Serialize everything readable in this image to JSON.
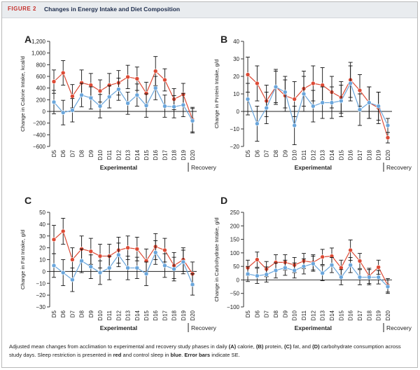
{
  "figure": {
    "label": "FIGURE 2",
    "title": "Changes in Energy Intake and Diet Composition"
  },
  "caption": {
    "parts": [
      {
        "t": "Adjusted mean changes from acclimation to experimental and recovery study phases in daily ",
        "b": false
      },
      {
        "t": "(A)",
        "b": true
      },
      {
        "t": " calorie, ",
        "b": false
      },
      {
        "t": "(B)",
        "b": true
      },
      {
        "t": " protein, ",
        "b": false
      },
      {
        "t": "(C)",
        "b": true
      },
      {
        "t": " fat, and ",
        "b": false
      },
      {
        "t": "(D)",
        "b": true
      },
      {
        "t": " carbohydrate consumption across study days. Sleep restriction is presented in ",
        "b": false
      },
      {
        "t": "red",
        "b": true
      },
      {
        "t": " and control sleep in ",
        "b": false
      },
      {
        "t": "blue",
        "b": true
      },
      {
        "t": ". ",
        "b": false
      },
      {
        "t": "Error bars",
        "b": true
      },
      {
        "t": " indicate SE.",
        "b": false
      }
    ]
  },
  "colors": {
    "sleep_restriction": "#dd4a35",
    "control": "#6aa6dc",
    "error_bar": "#111111",
    "axis": "#222222"
  },
  "chart_data": [
    {
      "panel": "A",
      "type": "line",
      "ylabel": "Change in Calorie Intake, kcal/d",
      "ylim": [
        -600,
        1200
      ],
      "yticks": [
        -600,
        -400,
        -200,
        0,
        200,
        400,
        600,
        800,
        1000,
        1200
      ],
      "ytick_labels": [
        "−600",
        "−400",
        "−200",
        "0",
        "200",
        "400",
        "600",
        "800",
        "1,000",
        "1,200"
      ],
      "categories": [
        "D5",
        "D6",
        "D7",
        "D8",
        "D9",
        "D10",
        "D11",
        "D12",
        "D13",
        "D14",
        "D15",
        "D16",
        "D17",
        "D18",
        "D19",
        "D20"
      ],
      "phase_labels": {
        "experimental": "Experimental",
        "recovery": "Recovery"
      },
      "series": [
        {
          "key": "sleep_restriction",
          "values": [
            510,
            660,
            260,
            490,
            450,
            350,
            450,
            490,
            590,
            560,
            310,
            690,
            540,
            210,
            290,
            -140
          ],
          "errors": [
            200,
            210,
            200,
            220,
            200,
            190,
            200,
            210,
            200,
            200,
            190,
            250,
            190,
            180,
            190,
            210
          ]
        },
        {
          "key": "control",
          "values": [
            160,
            -20,
            20,
            280,
            230,
            90,
            250,
            380,
            140,
            280,
            100,
            400,
            90,
            80,
            110,
            -160
          ],
          "errors": [
            200,
            210,
            200,
            200,
            190,
            200,
            190,
            190,
            190,
            190,
            200,
            200,
            190,
            190,
            200,
            210
          ]
        }
      ]
    },
    {
      "panel": "B",
      "type": "line",
      "ylabel": "Change in Protein Intake, g/d",
      "ylim": [
        -20,
        40
      ],
      "yticks": [
        -20,
        -10,
        0,
        10,
        20,
        30,
        40
      ],
      "ytick_labels": [
        "−20",
        "−10",
        "0",
        "10",
        "20",
        "30",
        "40"
      ],
      "categories": [
        "D5",
        "D6",
        "D7",
        "D8",
        "D9",
        "D10",
        "D11",
        "D12",
        "D13",
        "D14",
        "D15",
        "D16",
        "D17",
        "D18",
        "D19",
        "D20"
      ],
      "phase_labels": {
        "experimental": "Experimental",
        "recovery": "Recovery"
      },
      "series": [
        {
          "key": "sleep_restriction",
          "values": [
            21,
            16,
            6,
            14,
            9,
            7,
            13,
            16,
            15,
            11,
            8,
            18,
            12,
            5,
            2,
            -15
          ],
          "errors": [
            10,
            10,
            9,
            10,
            9,
            10,
            10,
            10,
            10,
            9,
            9,
            10,
            9,
            9,
            9,
            3
          ]
        },
        {
          "key": "control",
          "values": [
            7,
            -7,
            2,
            14,
            11,
            -8,
            10,
            3,
            5,
            5,
            6,
            16,
            1,
            5,
            3,
            -8
          ],
          "errors": [
            9,
            10,
            9,
            9,
            9,
            11,
            10,
            9,
            9,
            9,
            9,
            10,
            9,
            9,
            8,
            4
          ]
        }
      ]
    },
    {
      "panel": "C",
      "type": "line",
      "ylabel": "Change in Fat Intake, g/d",
      "ylim": [
        -30,
        50
      ],
      "yticks": [
        -30,
        -20,
        -10,
        0,
        10,
        20,
        30,
        40,
        50
      ],
      "ytick_labels": [
        "−30",
        "−20",
        "−10",
        "0",
        "10",
        "20",
        "30",
        "40",
        "50"
      ],
      "categories": [
        "D5",
        "D6",
        "D7",
        "D8",
        "D9",
        "D10",
        "D11",
        "D12",
        "D13",
        "D14",
        "D15",
        "D16",
        "D17",
        "D18",
        "D19",
        "D20"
      ],
      "phase_labels": {
        "experimental": "Experimental",
        "recovery": "Recovery"
      },
      "series": [
        {
          "key": "sleep_restriction",
          "values": [
            27,
            34,
            10,
            19,
            17,
            13,
            13,
            18,
            20,
            19,
            9,
            21,
            18,
            5,
            10,
            -2
          ],
          "errors": [
            12,
            11,
            10,
            11,
            11,
            10,
            10,
            11,
            10,
            10,
            10,
            11,
            10,
            11,
            10,
            10
          ]
        },
        {
          "key": "control",
          "values": [
            5,
            -1,
            -7,
            9,
            4,
            -1,
            3,
            14,
            3,
            3,
            -2,
            16,
            5,
            2,
            8,
            -11
          ],
          "errors": [
            10,
            11,
            10,
            10,
            10,
            10,
            10,
            10,
            10,
            9,
            10,
            10,
            10,
            10,
            10,
            9
          ]
        }
      ]
    },
    {
      "panel": "D",
      "type": "line",
      "ylabel": "Change in Carbohydrate Intake, g/d",
      "ylim": [
        -100,
        250
      ],
      "yticks": [
        -100,
        -50,
        0,
        50,
        100,
        150,
        200,
        250
      ],
      "ytick_labels": [
        "−100",
        "−50",
        "0",
        "50",
        "100",
        "150",
        "200",
        "250"
      ],
      "categories": [
        "D5",
        "D6",
        "D7",
        "D8",
        "D9",
        "D10",
        "D11",
        "D12",
        "D13",
        "D14",
        "D15",
        "D16",
        "D17",
        "D18",
        "D19",
        "D20"
      ],
      "phase_labels": {
        "experimental": "Experimental",
        "recovery": "Recovery"
      },
      "series": [
        {
          "key": "sleep_restriction",
          "values": [
            45,
            75,
            40,
            65,
            65,
            55,
            70,
            65,
            85,
            88,
            45,
            110,
            70,
            15,
            47,
            -20
          ],
          "errors": [
            28,
            28,
            28,
            28,
            28,
            28,
            28,
            28,
            28,
            30,
            28,
            38,
            28,
            28,
            26,
            25
          ]
        },
        {
          "key": "control",
          "values": [
            22,
            15,
            20,
            35,
            45,
            35,
            50,
            60,
            25,
            55,
            10,
            55,
            10,
            10,
            10,
            -25
          ],
          "errors": [
            28,
            28,
            28,
            28,
            28,
            28,
            28,
            28,
            28,
            28,
            28,
            28,
            28,
            28,
            25,
            25
          ]
        }
      ]
    }
  ]
}
